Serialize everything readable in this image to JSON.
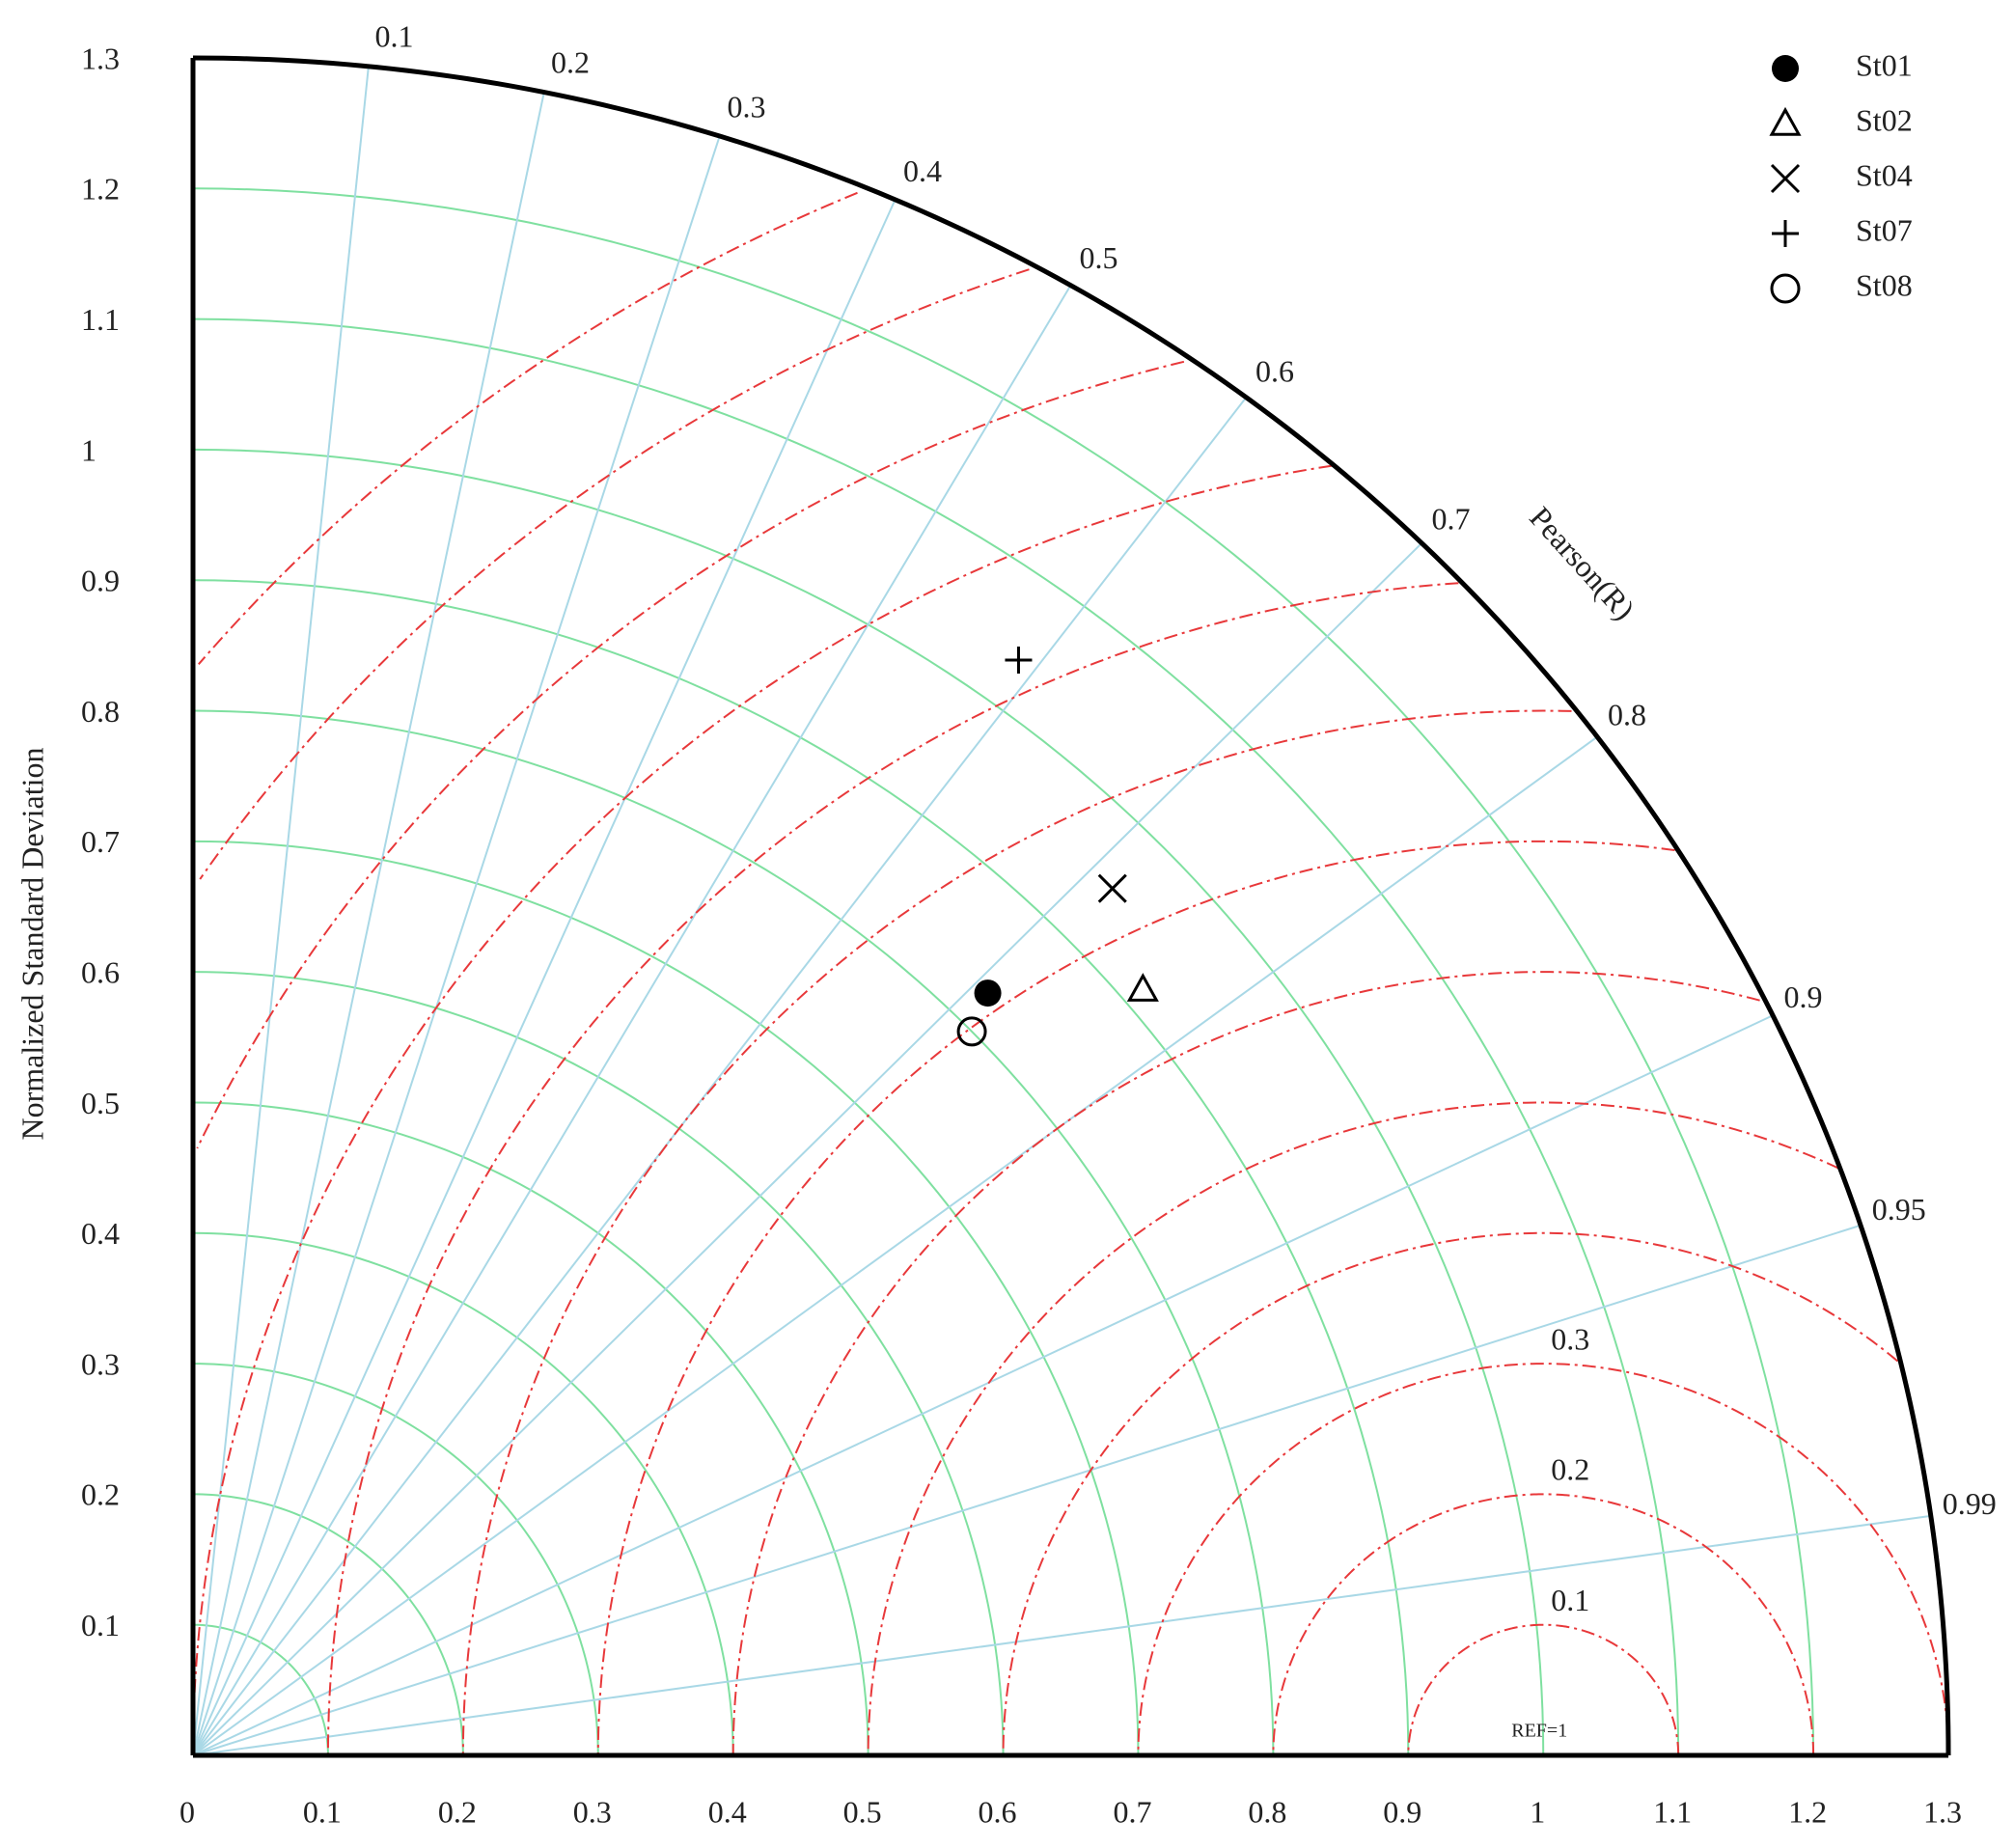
{
  "chart_data": {
    "type": "taylor",
    "y_axis_label": "Normalized Standard Deviation",
    "correlation_label": "Pearson(R)",
    "reference_label": "REF=1",
    "reference": 1,
    "xlim": [
      0,
      1.3
    ],
    "ylim": [
      0,
      1.3
    ],
    "xticks": [
      0,
      0.1,
      0.2,
      0.3,
      0.4,
      0.5,
      0.6,
      0.7,
      0.8,
      0.9,
      1,
      1.1,
      1.2,
      1.3
    ],
    "yticks": [
      0.1,
      0.2,
      0.3,
      0.4,
      0.5,
      0.6,
      0.7,
      0.8,
      0.9,
      1,
      1.1,
      1.2,
      1.3
    ],
    "correlation_ticks": [
      0.1,
      0.2,
      0.3,
      0.4,
      0.5,
      0.6,
      0.7,
      0.8,
      0.9,
      0.95,
      0.99
    ],
    "rmsd_levels": [
      0.1,
      0.2,
      0.3,
      0.4,
      0.5,
      0.6,
      0.7,
      0.8,
      0.9,
      1,
      1.1,
      1.2,
      1.3
    ],
    "rmsd_labels": [
      0.1,
      0.2,
      0.3
    ],
    "std_grid_color": "#7fe0a0",
    "correlation_grid_color": "#a9d8e6",
    "rmsd_color": "#e8383a",
    "series": [
      {
        "name": "St01",
        "marker": "filled-circle",
        "std": 0.829,
        "correlation": 0.71
      },
      {
        "name": "St02",
        "marker": "triangle",
        "std": 0.916,
        "correlation": 0.768
      },
      {
        "name": "St04",
        "marker": "x",
        "std": 0.951,
        "correlation": 0.716
      },
      {
        "name": "St07",
        "marker": "plus",
        "std": 1.038,
        "correlation": 0.589
      },
      {
        "name": "St08",
        "marker": "circle",
        "std": 0.8,
        "correlation": 0.721
      }
    ]
  }
}
